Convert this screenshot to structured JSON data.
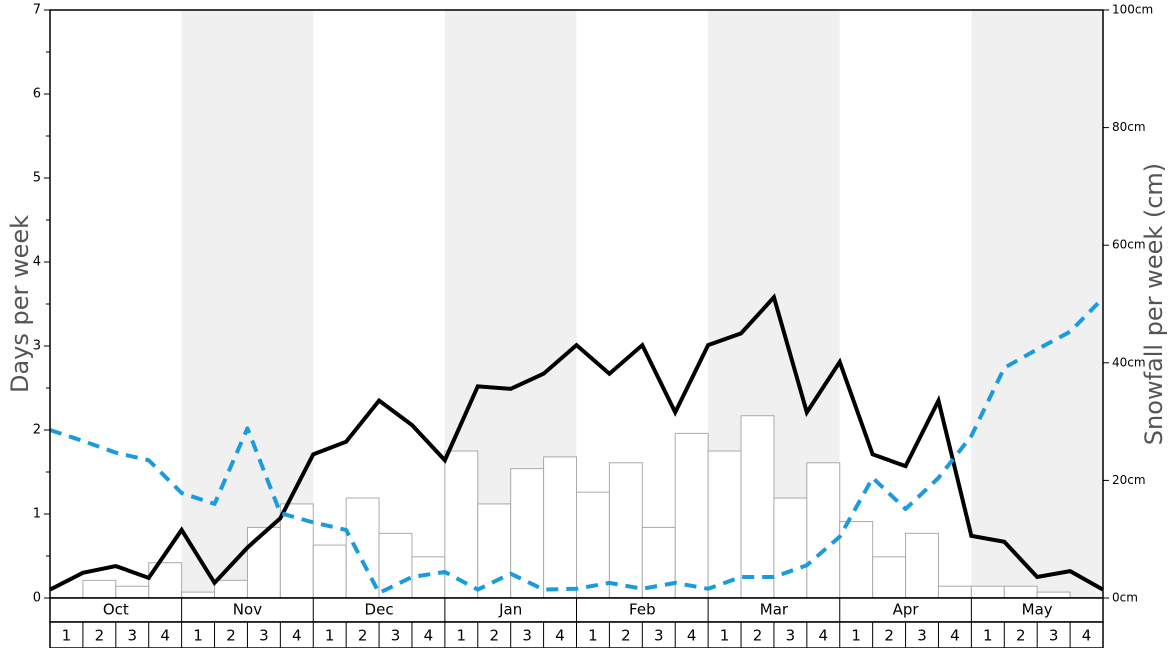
{
  "chart_data": {
    "type": "bar-line",
    "y_label": "Days per week",
    "y2_label": "Snowfall per week (cm)",
    "months": [
      "Oct",
      "Nov",
      "Dec",
      "Jan",
      "Feb",
      "Mar",
      "Apr",
      "May"
    ],
    "categories": [
      "1",
      "2",
      "3",
      "4",
      "1",
      "2",
      "3",
      "4",
      "1",
      "2",
      "3",
      "4",
      "1",
      "2",
      "3",
      "4",
      "1",
      "2",
      "3",
      "4",
      "1",
      "2",
      "3",
      "4",
      "1",
      "2",
      "3",
      "4",
      "1",
      "2",
      "3",
      "4"
    ],
    "ylim": [
      0,
      7
    ],
    "yticks": [
      0,
      1,
      2,
      3,
      4,
      5,
      6,
      7
    ],
    "yminorticks": [
      0.5,
      1.5,
      2.5,
      3.5,
      4.5,
      5.5,
      6.5
    ],
    "y2lim": [
      0,
      100
    ],
    "y2ticks": [
      {
        "value": 0,
        "label": "0cm"
      },
      {
        "value": 20,
        "label": "20cm"
      },
      {
        "value": 40,
        "label": "40cm"
      },
      {
        "value": 60,
        "label": "60cm"
      },
      {
        "value": 80,
        "label": "80cm"
      },
      {
        "value": 100,
        "label": "100cm"
      }
    ],
    "bars": {
      "axis": "y2",
      "color": "#ffffff",
      "values": [
        0,
        3,
        2,
        6,
        1,
        3,
        12,
        16,
        9,
        17,
        11,
        7,
        25,
        16,
        22,
        24,
        18,
        23,
        12,
        28,
        25,
        31,
        17,
        23,
        13,
        7,
        11,
        2,
        2,
        2,
        1,
        0
      ]
    },
    "x": [
      0,
      1,
      2,
      3,
      4,
      5,
      6,
      7,
      8,
      9,
      10,
      11,
      12,
      13,
      14,
      15,
      16,
      17,
      18,
      19,
      20,
      21,
      22,
      23,
      24,
      25,
      26,
      27,
      28,
      29,
      30,
      31,
      32
    ],
    "xlim": [
      0,
      32
    ],
    "series": [
      {
        "color": "#000000",
        "dashed": false,
        "values": [
          0.1,
          0.3,
          0.38,
          0.24,
          0.81,
          0.18,
          0.6,
          0.95,
          1.71,
          1.86,
          2.35,
          2.06,
          1.64,
          2.52,
          2.49,
          2.67,
          3.01,
          2.67,
          3.01,
          2.21,
          3.01,
          3.15,
          3.58,
          2.21,
          2.81,
          1.71,
          1.57,
          2.35,
          0.74,
          0.67,
          0.25,
          0.32,
          0.1
        ]
      },
      {
        "color": "#1a9be0",
        "dashed": true,
        "values": [
          2.0,
          1.87,
          1.73,
          1.64,
          1.25,
          1.12,
          2.02,
          1.01,
          0.9,
          0.81,
          0.06,
          0.25,
          0.31,
          0.1,
          0.29,
          0.1,
          0.11,
          0.18,
          0.11,
          0.18,
          0.11,
          0.25,
          0.25,
          0.39,
          0.73,
          1.43,
          1.06,
          1.43,
          1.93,
          2.74,
          2.96,
          3.17,
          3.57
        ]
      }
    ]
  }
}
